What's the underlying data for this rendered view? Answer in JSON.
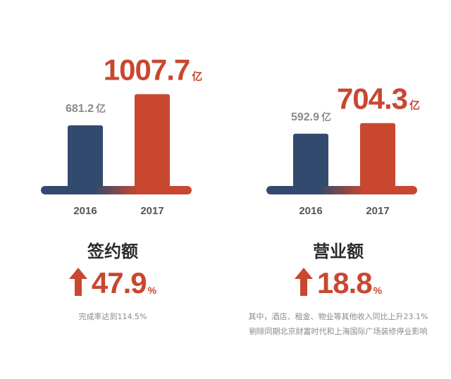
{
  "colors": {
    "blue": "#324a6d",
    "red": "#c9472f",
    "value_grey": "#8a8a8a",
    "title": "#2b2b2b"
  },
  "chart_data": [
    {
      "type": "bar",
      "categories": [
        "2016",
        "2017"
      ],
      "values": [
        681.2,
        1007.7
      ],
      "value_labels": [
        "681.2",
        "1007.7"
      ],
      "unit": "亿",
      "title": "签约额",
      "growth": "47.9",
      "growth_unit": "%",
      "notes": [
        "完成率达到114.5%"
      ]
    },
    {
      "type": "bar",
      "categories": [
        "2016",
        "2017"
      ],
      "values": [
        592.9,
        704.3
      ],
      "value_labels": [
        "592.9",
        "704.3"
      ],
      "unit": "亿",
      "title": "营业额",
      "growth": "18.8",
      "growth_unit": "%",
      "notes": [
        "其中，酒店、租金、物业等其他收入同比上升23.1%",
        "剔除同期北京财富时代和上海国际广场装修停业影响"
      ]
    }
  ]
}
